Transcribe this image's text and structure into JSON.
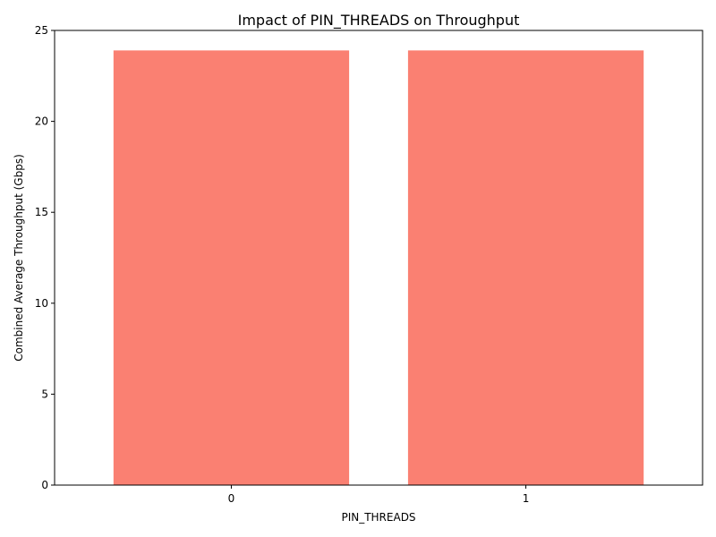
{
  "chart_data": {
    "type": "bar",
    "title": "Impact of PIN_THREADS on Throughput",
    "xlabel": "PIN_THREADS",
    "ylabel": "Combined Average Throughput (Gbps)",
    "categories": [
      "0",
      "1"
    ],
    "values": [
      23.9,
      23.9
    ],
    "ylim": [
      0,
      25
    ],
    "yticks": [
      0,
      5,
      10,
      15,
      20,
      25
    ],
    "grid": false,
    "bar_color": "#fa8072"
  }
}
